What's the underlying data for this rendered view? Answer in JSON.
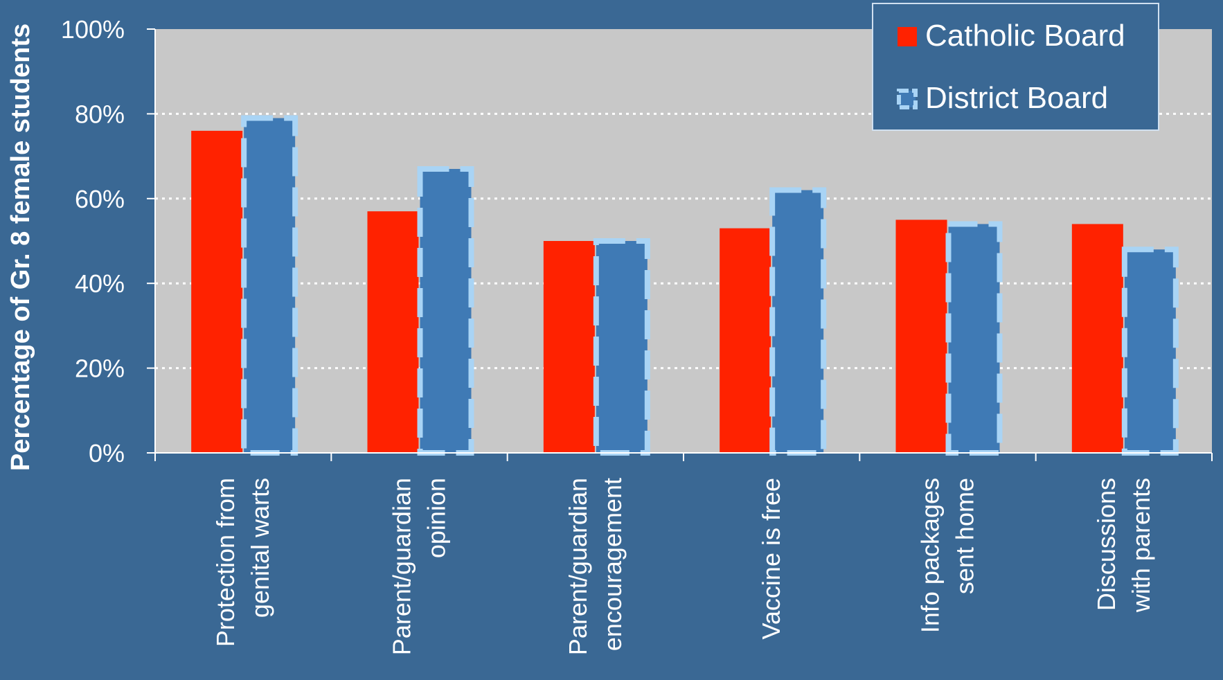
{
  "chart_data": {
    "type": "bar",
    "title": "",
    "xlabel": "",
    "ylabel": "Percentage of Gr. 8 female students",
    "ylim": [
      0,
      100
    ],
    "yticks": [
      "0%",
      "20%",
      "40%",
      "60%",
      "80%",
      "100%"
    ],
    "ytick_values": [
      0,
      20,
      40,
      60,
      80,
      100
    ],
    "grid": true,
    "legend_position": "top-right",
    "categories": [
      [
        "Protection from",
        "genital warts"
      ],
      [
        "Parent/guardian",
        "opinion"
      ],
      [
        "Parent/guardian",
        "encouragement"
      ],
      [
        "Vaccine is free"
      ],
      [
        "Info packages",
        "sent home"
      ],
      [
        "Discussions",
        "with parents"
      ]
    ],
    "series": [
      {
        "name": "Catholic Board",
        "color": "#ff2200",
        "values": [
          76,
          57,
          50,
          53,
          55,
          54
        ]
      },
      {
        "name": "District Board",
        "color": "#3f7ab5",
        "border_color": "#a9d4f5",
        "values": [
          79,
          67,
          50,
          62,
          54,
          48
        ]
      }
    ],
    "colors": {
      "background": "#3a6894",
      "plot_area": "#c8c8c8",
      "legend_bg": "#3a6894",
      "legend_border": "#d0e0f0",
      "gridline": "#ffffff",
      "text": "#ffffff"
    }
  }
}
